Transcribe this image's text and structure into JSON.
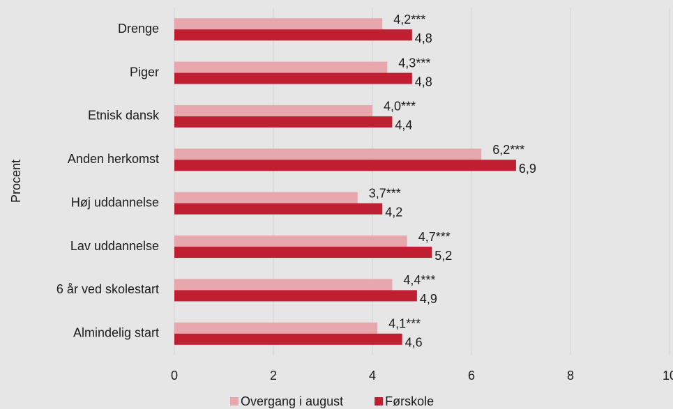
{
  "chart_data": {
    "type": "barh",
    "y_label": "Procent",
    "categories": [
      "Drenge",
      "Piger",
      "Etnisk dansk",
      "Anden herkomst",
      "Høj uddannelse",
      "Lav uddannelse",
      "6 år ved skolestart",
      "Almindelig start"
    ],
    "series": [
      {
        "name": "Overgang i august",
        "color": "#e8a7ad",
        "values": [
          4.2,
          4.3,
          4.0,
          6.2,
          3.7,
          4.7,
          4.4,
          4.1
        ],
        "value_labels": [
          "4,2***",
          "4,3***",
          "4,0***",
          "6,2***",
          "3,7***",
          "4,7***",
          "4,4***",
          "4,1***"
        ]
      },
      {
        "name": "Førskole",
        "color": "#c01f31",
        "values": [
          4.8,
          4.8,
          4.4,
          6.9,
          4.2,
          5.2,
          4.9,
          4.6
        ],
        "value_labels": [
          "4,8",
          "4,8",
          "4,4",
          "6,9",
          "4,2",
          "5,2",
          "4,9",
          "4,6"
        ]
      }
    ],
    "xlim": [
      0,
      10
    ],
    "xticks": [
      0,
      2,
      4,
      6,
      8,
      10
    ],
    "grid": true
  }
}
